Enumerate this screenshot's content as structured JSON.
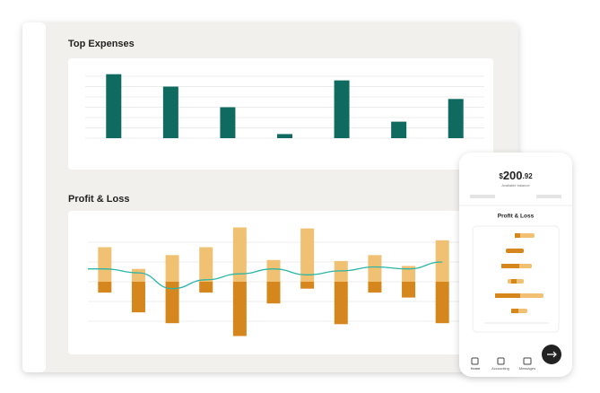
{
  "chart_data": [
    {
      "type": "bar",
      "title": "Top Expenses",
      "color": "#0f6b5f",
      "categories": [
        null,
        null,
        null,
        null,
        null,
        null,
        null
      ],
      "values": [
        62,
        50,
        30,
        4,
        56,
        16,
        38
      ],
      "ylim": [
        0,
        60
      ],
      "yticks": [
        0,
        10,
        20,
        30,
        40,
        50,
        60
      ],
      "grid": true
    },
    {
      "type": "bar-line",
      "title": "Profit & Loss",
      "categories": [
        null,
        null,
        null,
        null,
        null,
        null,
        null,
        null,
        null,
        null,
        null
      ],
      "series": [
        {
          "color": "#f1c173",
          "values": [
            35,
            13,
            27,
            35,
            55,
            22,
            54,
            21,
            27,
            16,
            42
          ]
        },
        {
          "color": "#d5861c",
          "values": [
            -11,
            -31,
            -42,
            -11,
            -55,
            -22,
            -7,
            -43,
            -11,
            -16,
            -42
          ]
        },
        {
          "color": "#2bb5a6",
          "kind": "line",
          "values": [
            13,
            9,
            -7,
            2,
            8,
            13,
            7,
            11,
            15,
            13,
            20
          ]
        }
      ],
      "ylim": [
        -60,
        60
      ],
      "yticks": [
        -40,
        -20,
        0,
        20,
        40
      ],
      "grid": true
    }
  ],
  "phone": {
    "currency": "$",
    "amount": "200",
    "cents": ".92",
    "balance_label": "Available balance",
    "section_title": "Profit & Loss",
    "nav": [
      "Home",
      "Accounting",
      "Messages"
    ]
  }
}
